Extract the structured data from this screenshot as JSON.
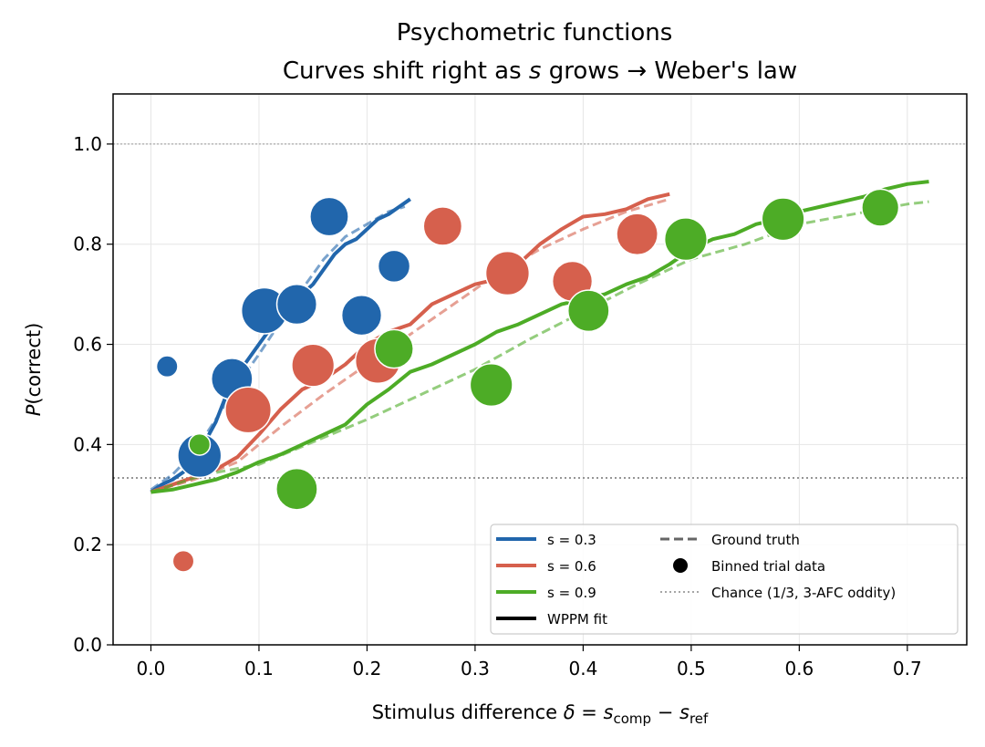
{
  "chart_data": {
    "type": "scatter",
    "title_line1": "Psychometric functions",
    "title_line2_prefix": "Curves shift right as ",
    "title_line2_var": "s",
    "title_line2_suffix": " grows  → Weber's law",
    "xlabel": {
      "prefix": "Stimulus difference  ",
      "delta": "δ",
      "eq": " = ",
      "s1": "s",
      "sub1": "comp",
      "minus": " − ",
      "s2": "s",
      "sub2": "ref"
    },
    "ylabel": {
      "italic": "P",
      "rest": "(correct)"
    },
    "xlim": [
      -0.035,
      0.755
    ],
    "ylim": [
      0.0,
      1.1
    ],
    "xticks": [
      "0.0",
      "0.1",
      "0.2",
      "0.3",
      "0.4",
      "0.5",
      "0.6",
      "0.7"
    ],
    "yticks": [
      "0.0",
      "0.2",
      "0.4",
      "0.6",
      "0.8",
      "1.0"
    ],
    "grid": true,
    "chance_level": 0.3333,
    "ceiling_level": 1.0,
    "legend_position": "lower right",
    "legend": {
      "s03": "s = 0.3",
      "s06": "s = 0.6",
      "s09": "s = 0.9",
      "fit": "WPPM fit",
      "truth": "Ground truth",
      "binned": "Binned trial data",
      "chance": "Chance (1/3, 3-AFC oddity)"
    },
    "colors": {
      "s03": "#2166ac",
      "s06": "#d6604d",
      "s09": "#4dac26"
    },
    "series": [
      {
        "name": "s = 0.3",
        "color": "#2166ac",
        "fit": [
          [
            0.0,
            0.305
          ],
          [
            0.01,
            0.32
          ],
          [
            0.02,
            0.33
          ],
          [
            0.03,
            0.345
          ],
          [
            0.04,
            0.37
          ],
          [
            0.05,
            0.405
          ],
          [
            0.06,
            0.445
          ],
          [
            0.07,
            0.5
          ],
          [
            0.08,
            0.54
          ],
          [
            0.09,
            0.57
          ],
          [
            0.1,
            0.6
          ],
          [
            0.11,
            0.63
          ],
          [
            0.12,
            0.65
          ],
          [
            0.13,
            0.68
          ],
          [
            0.14,
            0.7
          ],
          [
            0.15,
            0.72
          ],
          [
            0.16,
            0.75
          ],
          [
            0.17,
            0.78
          ],
          [
            0.18,
            0.8
          ],
          [
            0.19,
            0.81
          ],
          [
            0.2,
            0.83
          ],
          [
            0.21,
            0.85
          ],
          [
            0.22,
            0.86
          ],
          [
            0.23,
            0.875
          ],
          [
            0.24,
            0.89
          ]
        ],
        "truth": [
          [
            0.0,
            0.31
          ],
          [
            0.02,
            0.34
          ],
          [
            0.04,
            0.385
          ],
          [
            0.06,
            0.45
          ],
          [
            0.08,
            0.52
          ],
          [
            0.1,
            0.58
          ],
          [
            0.12,
            0.645
          ],
          [
            0.14,
            0.71
          ],
          [
            0.16,
            0.77
          ],
          [
            0.18,
            0.815
          ],
          [
            0.2,
            0.84
          ],
          [
            0.22,
            0.865
          ],
          [
            0.235,
            0.875
          ]
        ],
        "points": [
          {
            "x": 0.015,
            "y": 0.556,
            "n": 1
          },
          {
            "x": 0.045,
            "y": 0.378,
            "n": 13
          },
          {
            "x": 0.075,
            "y": 0.531,
            "n": 11
          },
          {
            "x": 0.105,
            "y": 0.667,
            "n": 15
          },
          {
            "x": 0.135,
            "y": 0.68,
            "n": 10
          },
          {
            "x": 0.165,
            "y": 0.855,
            "n": 9
          },
          {
            "x": 0.195,
            "y": 0.658,
            "n": 10
          },
          {
            "x": 0.225,
            "y": 0.756,
            "n": 5
          }
        ]
      },
      {
        "name": "s = 0.6",
        "color": "#d6604d",
        "fit": [
          [
            0.0,
            0.305
          ],
          [
            0.02,
            0.32
          ],
          [
            0.04,
            0.335
          ],
          [
            0.06,
            0.35
          ],
          [
            0.08,
            0.375
          ],
          [
            0.1,
            0.42
          ],
          [
            0.12,
            0.47
          ],
          [
            0.14,
            0.51
          ],
          [
            0.16,
            0.53
          ],
          [
            0.18,
            0.56
          ],
          [
            0.2,
            0.6
          ],
          [
            0.22,
            0.625
          ],
          [
            0.24,
            0.64
          ],
          [
            0.26,
            0.68
          ],
          [
            0.28,
            0.7
          ],
          [
            0.3,
            0.72
          ],
          [
            0.32,
            0.73
          ],
          [
            0.34,
            0.76
          ],
          [
            0.36,
            0.8
          ],
          [
            0.38,
            0.83
          ],
          [
            0.4,
            0.855
          ],
          [
            0.42,
            0.86
          ],
          [
            0.44,
            0.87
          ],
          [
            0.46,
            0.89
          ],
          [
            0.48,
            0.9
          ]
        ],
        "truth": [
          [
            0.0,
            0.305
          ],
          [
            0.04,
            0.33
          ],
          [
            0.08,
            0.365
          ],
          [
            0.12,
            0.435
          ],
          [
            0.16,
            0.5
          ],
          [
            0.2,
            0.56
          ],
          [
            0.24,
            0.62
          ],
          [
            0.28,
            0.68
          ],
          [
            0.32,
            0.74
          ],
          [
            0.36,
            0.79
          ],
          [
            0.4,
            0.83
          ],
          [
            0.44,
            0.865
          ],
          [
            0.48,
            0.89
          ]
        ],
        "points": [
          {
            "x": 0.03,
            "y": 0.167,
            "n": 1
          },
          {
            "x": 0.09,
            "y": 0.469,
            "n": 15
          },
          {
            "x": 0.15,
            "y": 0.558,
            "n": 12
          },
          {
            "x": 0.21,
            "y": 0.567,
            "n": 14
          },
          {
            "x": 0.27,
            "y": 0.836,
            "n": 9
          },
          {
            "x": 0.33,
            "y": 0.742,
            "n": 13
          },
          {
            "x": 0.39,
            "y": 0.726,
            "n": 10
          },
          {
            "x": 0.45,
            "y": 0.82,
            "n": 11
          }
        ]
      },
      {
        "name": "s = 0.9",
        "color": "#4dac26",
        "fit": [
          [
            0.0,
            0.305
          ],
          [
            0.02,
            0.31
          ],
          [
            0.04,
            0.32
          ],
          [
            0.05,
            0.325
          ],
          [
            0.06,
            0.33
          ],
          [
            0.08,
            0.345
          ],
          [
            0.1,
            0.365
          ],
          [
            0.12,
            0.38
          ],
          [
            0.14,
            0.4
          ],
          [
            0.16,
            0.42
          ],
          [
            0.18,
            0.44
          ],
          [
            0.2,
            0.48
          ],
          [
            0.22,
            0.51
          ],
          [
            0.24,
            0.545
          ],
          [
            0.26,
            0.56
          ],
          [
            0.28,
            0.58
          ],
          [
            0.3,
            0.6
          ],
          [
            0.32,
            0.625
          ],
          [
            0.34,
            0.64
          ],
          [
            0.36,
            0.66
          ],
          [
            0.38,
            0.68
          ],
          [
            0.4,
            0.69
          ],
          [
            0.42,
            0.7
          ],
          [
            0.44,
            0.72
          ],
          [
            0.46,
            0.735
          ],
          [
            0.48,
            0.76
          ],
          [
            0.5,
            0.79
          ],
          [
            0.52,
            0.81
          ],
          [
            0.54,
            0.82
          ],
          [
            0.56,
            0.84
          ],
          [
            0.58,
            0.85
          ],
          [
            0.6,
            0.865
          ],
          [
            0.62,
            0.875
          ],
          [
            0.64,
            0.885
          ],
          [
            0.66,
            0.895
          ],
          [
            0.68,
            0.91
          ],
          [
            0.7,
            0.92
          ],
          [
            0.72,
            0.925
          ]
        ],
        "truth": [
          [
            0.0,
            0.305
          ],
          [
            0.05,
            0.34
          ],
          [
            0.1,
            0.36
          ],
          [
            0.15,
            0.405
          ],
          [
            0.2,
            0.45
          ],
          [
            0.25,
            0.5
          ],
          [
            0.3,
            0.55
          ],
          [
            0.35,
            0.61
          ],
          [
            0.4,
            0.665
          ],
          [
            0.45,
            0.72
          ],
          [
            0.5,
            0.77
          ],
          [
            0.55,
            0.8
          ],
          [
            0.6,
            0.84
          ],
          [
            0.65,
            0.86
          ],
          [
            0.7,
            0.88
          ],
          [
            0.72,
            0.885
          ]
        ],
        "points": [
          {
            "x": 0.045,
            "y": 0.4,
            "n": 1
          },
          {
            "x": 0.135,
            "y": 0.311,
            "n": 11
          },
          {
            "x": 0.225,
            "y": 0.591,
            "n": 9
          },
          {
            "x": 0.315,
            "y": 0.519,
            "n": 12
          },
          {
            "x": 0.405,
            "y": 0.667,
            "n": 11
          },
          {
            "x": 0.495,
            "y": 0.81,
            "n": 12
          },
          {
            "x": 0.585,
            "y": 0.85,
            "n": 12
          },
          {
            "x": 0.675,
            "y": 0.873,
            "n": 8
          }
        ]
      }
    ]
  }
}
